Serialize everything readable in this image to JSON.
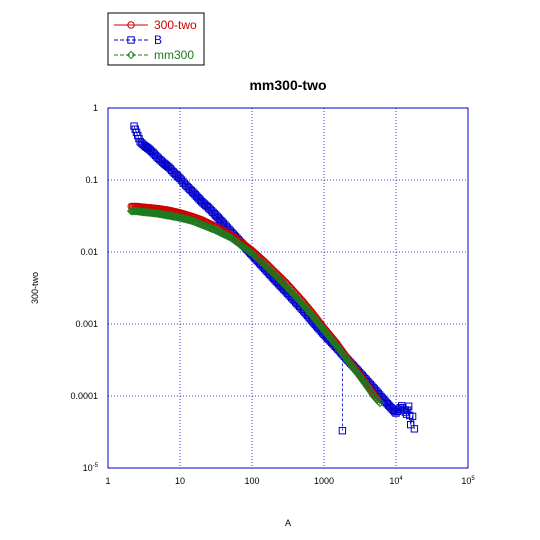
{
  "chart_data": {
    "type": "scatter",
    "title": "mm300-two",
    "xlabel": "A",
    "ylabel": "300-two",
    "xscale": "log",
    "yscale": "log",
    "xlim": [
      1,
      100000
    ],
    "ylim": [
      1e-05,
      1
    ],
    "x_ticks": [
      {
        "value": 1,
        "label": "1"
      },
      {
        "value": 10,
        "label": "10"
      },
      {
        "value": 100,
        "label": "100"
      },
      {
        "value": 1000,
        "label": "1000"
      },
      {
        "value": 10000,
        "base": "10",
        "exp": "4"
      },
      {
        "value": 100000,
        "base": "10",
        "exp": "5"
      }
    ],
    "y_ticks": [
      {
        "value": 1,
        "label": "1"
      },
      {
        "value": 0.1,
        "label": "0.1"
      },
      {
        "value": 0.01,
        "label": "0.01"
      },
      {
        "value": 0.001,
        "label": "0.001"
      },
      {
        "value": 0.0001,
        "label": "0.0001"
      },
      {
        "value": 1e-05,
        "base": "10",
        "exp": "-5"
      }
    ],
    "grid": "dotted",
    "legend_position": "top-left-outside",
    "series": [
      {
        "name": "300-two",
        "color": "#cc0000",
        "marker": "circle",
        "x": [
          2.1,
          2.5,
          3,
          4,
          5,
          7,
          10,
          15,
          20,
          30,
          50,
          70,
          100,
          150,
          200,
          300,
          500,
          700,
          1000,
          1500,
          2000,
          3000,
          4000,
          5500
        ],
        "y": [
          0.043,
          0.043,
          0.042,
          0.041,
          0.04,
          0.038,
          0.035,
          0.031,
          0.028,
          0.023,
          0.0175,
          0.0138,
          0.0105,
          0.0073,
          0.0055,
          0.0037,
          0.0021,
          0.0014,
          0.00088,
          0.00054,
          0.00036,
          0.00021,
          0.00014,
          9e-05
        ]
      },
      {
        "name": "B",
        "color": "#0000cc",
        "marker": "square",
        "x": [
          2.3,
          2.8,
          3.2,
          3.7,
          4.2,
          5,
          6,
          7,
          8,
          10,
          12,
          15,
          20,
          25,
          30,
          40,
          50,
          70,
          100,
          150,
          200,
          300,
          500,
          700,
          1000,
          1500,
          2000,
          3000,
          5000,
          7000,
          10000,
          12000,
          14000,
          15000,
          16000,
          17000,
          18000
        ],
        "y": [
          0.56,
          0.34,
          0.3,
          0.27,
          0.24,
          0.2,
          0.17,
          0.15,
          0.13,
          0.105,
          0.085,
          0.068,
          0.05,
          0.041,
          0.034,
          0.025,
          0.0195,
          0.0135,
          0.0092,
          0.0059,
          0.0043,
          0.0028,
          0.0016,
          0.00108,
          0.00072,
          0.00047,
          0.00034,
          0.00022,
          0.000125,
          8.5e-05,
          5.8e-05,
          7.3e-05,
          5.6e-05,
          7.2e-05,
          4e-05,
          5.2e-05,
          3.5e-05
        ],
        "outlier": {
          "x": 1800,
          "y": 3.3e-05
        }
      },
      {
        "name": "mm300",
        "color": "#1e7a1e",
        "marker": "diamond",
        "x": [
          2.1,
          2.5,
          3,
          4,
          5,
          7,
          10,
          15,
          20,
          30,
          50,
          70,
          100,
          150,
          200,
          300,
          500,
          700,
          1000,
          1500,
          2000,
          3000,
          4000,
          5000,
          6000
        ],
        "y": [
          0.037,
          0.037,
          0.036,
          0.035,
          0.034,
          0.032,
          0.03,
          0.027,
          0.024,
          0.0205,
          0.016,
          0.0125,
          0.0096,
          0.0066,
          0.005,
          0.0033,
          0.0019,
          0.00128,
          0.00082,
          0.0005,
          0.00034,
          0.0002,
          0.000135,
          9.8e-05,
          8e-05
        ]
      }
    ]
  }
}
